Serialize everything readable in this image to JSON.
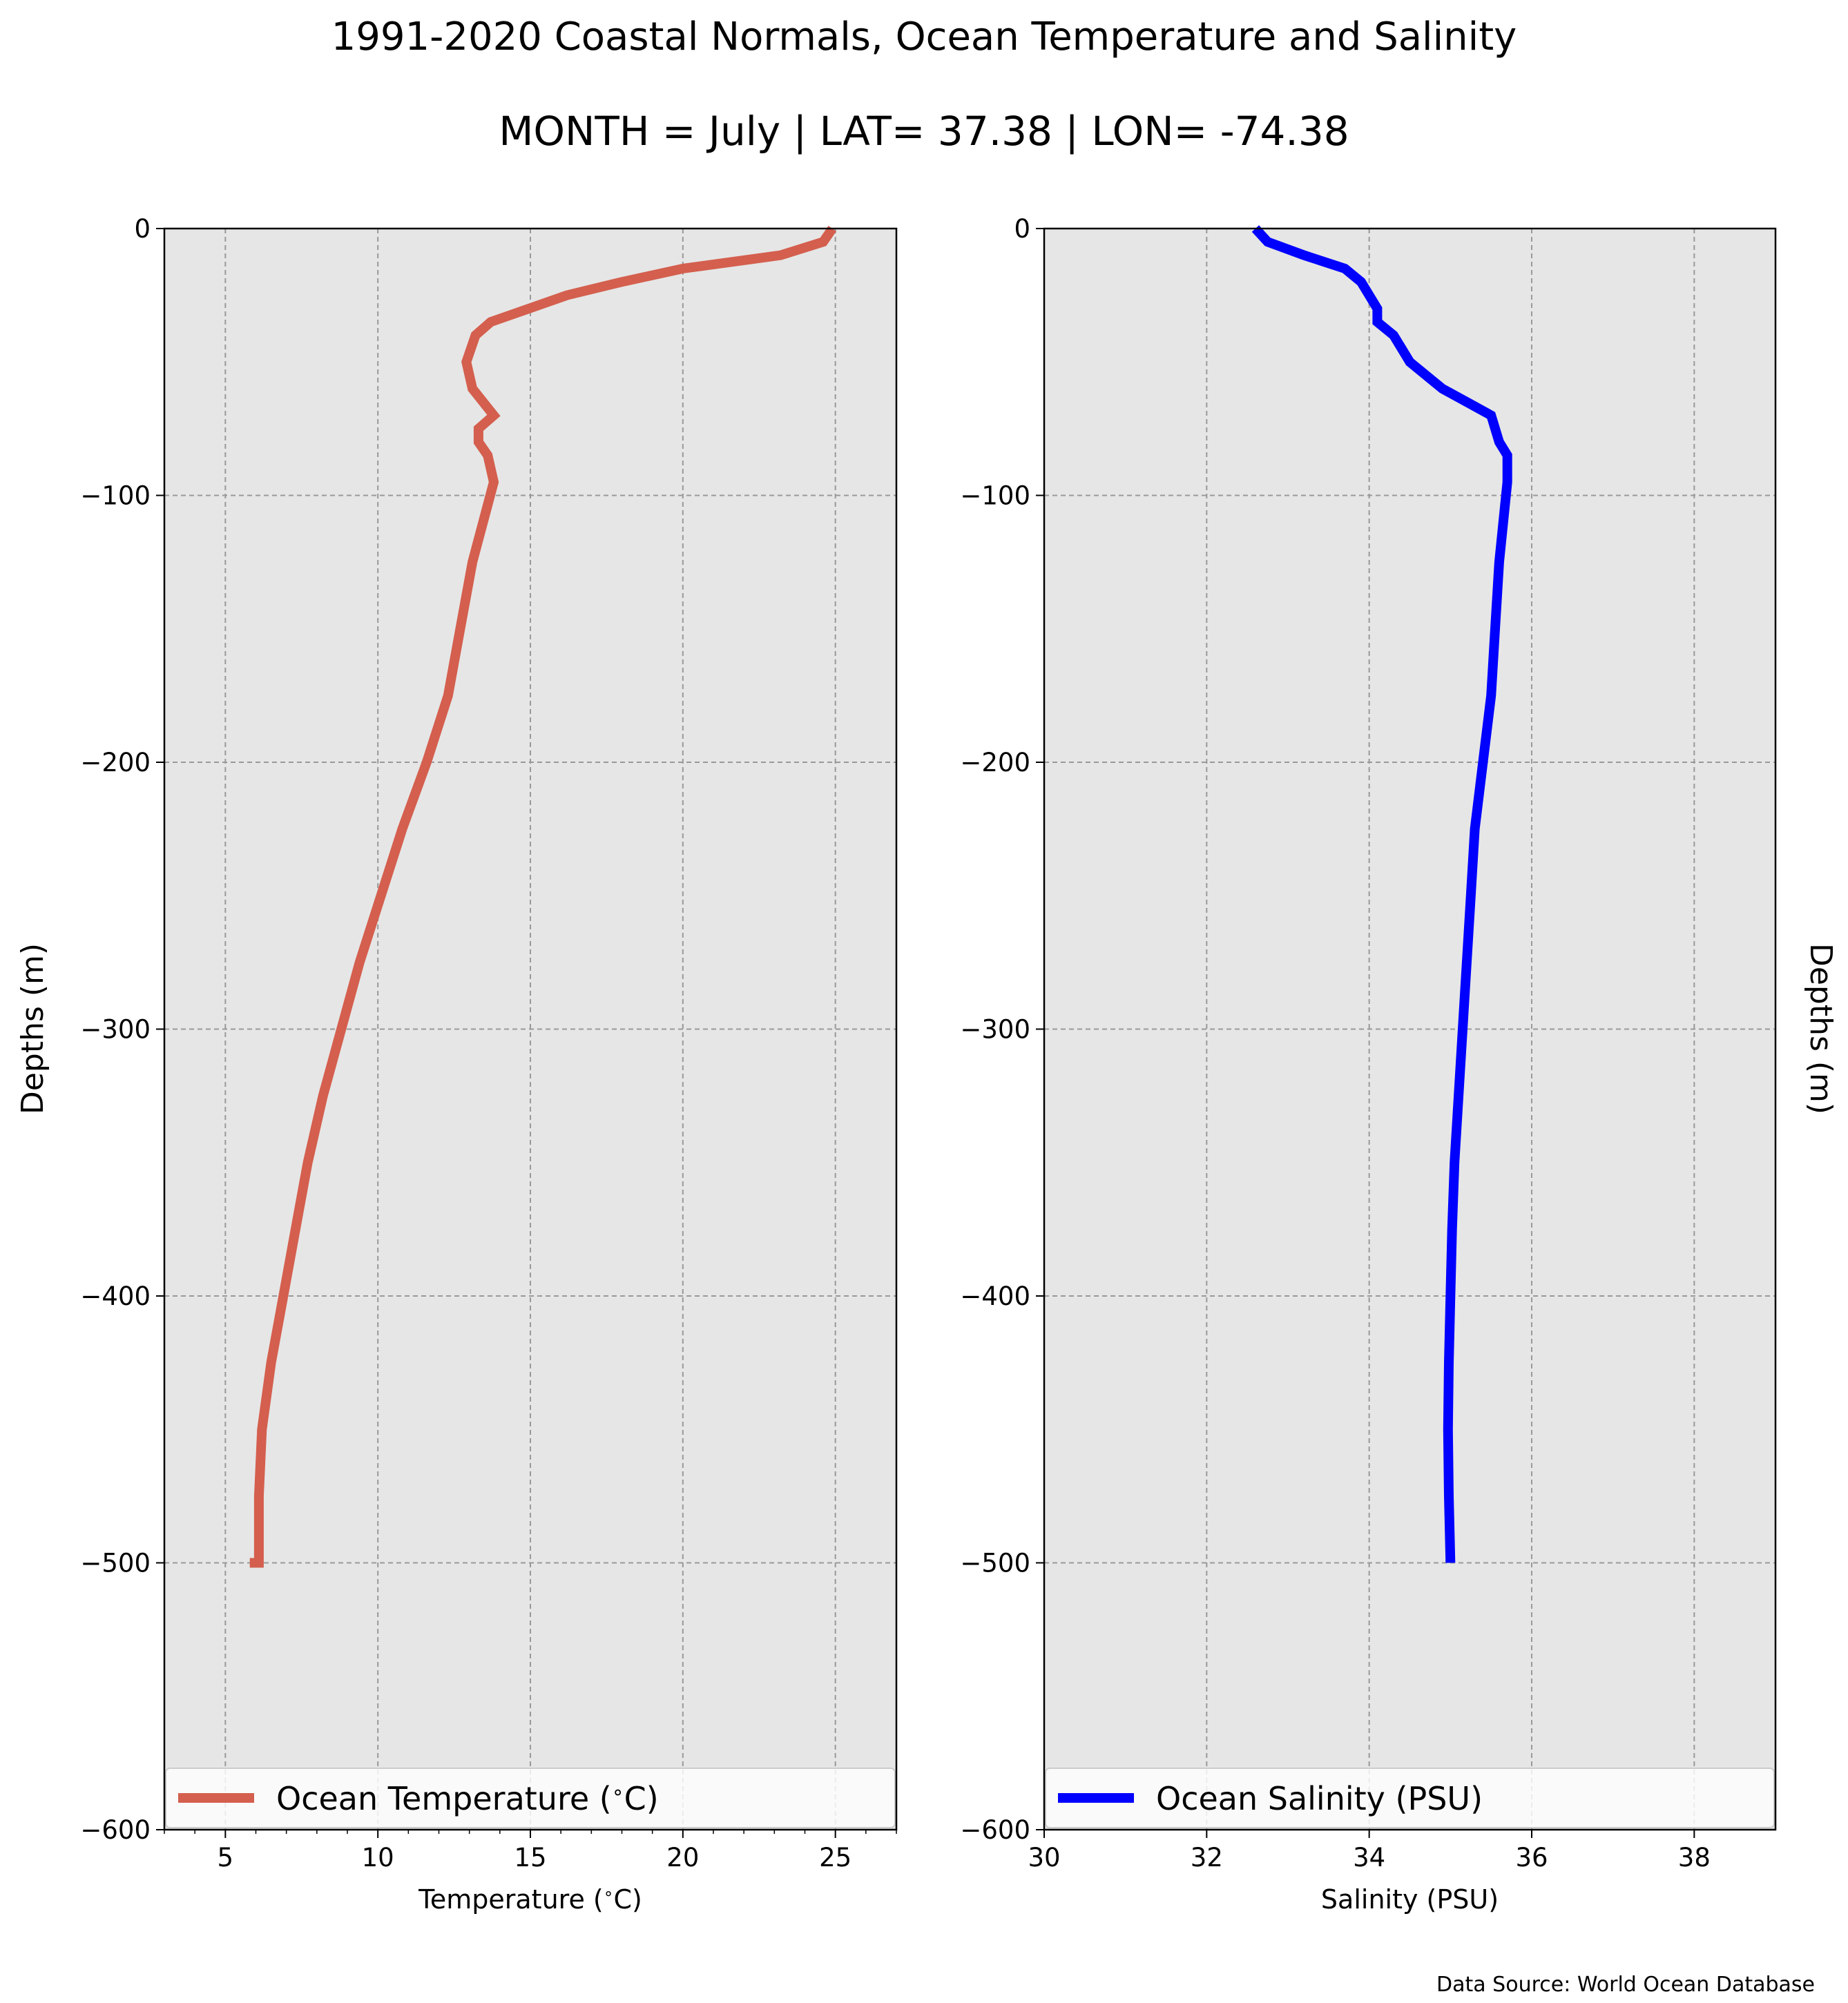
{
  "figure": {
    "title": "1991-2020 Coastal Normals, Ocean Temperature and Salinity",
    "subtitle": "MONTH = July | LAT= 37.38 | LON= -74.38",
    "source": "Data Source: World Ocean Database"
  },
  "colors": {
    "temperature": "#d45f4e",
    "salinity": "#0000ff",
    "plot_bg": "#e6e6e6",
    "grid": "#999999"
  },
  "chart_data": [
    {
      "type": "line",
      "xlabel": "Temperature ($^\\circ$C)",
      "ylabel": "Depths (m)",
      "xlim": [
        3,
        27
      ],
      "ylim": [
        -600,
        0
      ],
      "xticks": [
        5,
        10,
        15,
        20,
        25
      ],
      "xtick_labels": [
        "5",
        "10",
        "15",
        "20",
        "25"
      ],
      "yticks": [
        0,
        -100,
        -200,
        -300,
        -400,
        -500,
        -600
      ],
      "ytick_labels": [
        "0",
        "−100",
        "−200",
        "−300",
        "−400",
        "−500",
        "−600"
      ],
      "grid": true,
      "legend_position": "lower center",
      "series": [
        {
          "name": "Ocean Temperature ($^\\circ$C)",
          "x": [
            24.9,
            24.6,
            23.2,
            20.0,
            18.0,
            16.2,
            13.7,
            13.2,
            12.9,
            13.1,
            13.8,
            13.3,
            13.3,
            13.6,
            13.8,
            13.1,
            12.7,
            12.3,
            11.6,
            10.8,
            10.1,
            9.4,
            8.8,
            8.2,
            7.7,
            7.3,
            6.9,
            6.5,
            6.2,
            6.1,
            6.1,
            5.8
          ],
          "y": [
            0,
            -5,
            -10,
            -15,
            -20,
            -25,
            -35,
            -40,
            -50,
            -60,
            -70,
            -75,
            -80,
            -85,
            -95,
            -125,
            -150,
            -175,
            -200,
            -225,
            -250,
            -275,
            -300,
            -325,
            -350,
            -375,
            -400,
            -425,
            -450,
            -475,
            -500,
            -500
          ]
        }
      ]
    },
    {
      "type": "line",
      "xlabel": "Salinity (PSU)",
      "ylabel": "Depths (m)",
      "xlim": [
        30,
        39
      ],
      "ylim": [
        -600,
        0
      ],
      "xticks": [
        30,
        32,
        34,
        36,
        38
      ],
      "xtick_labels": [
        "30",
        "32",
        "34",
        "36",
        "38"
      ],
      "yticks": [
        0,
        -100,
        -200,
        -300,
        -400,
        -500,
        -600
      ],
      "ytick_labels": [
        "0",
        "−100",
        "−200",
        "−300",
        "−400",
        "−500",
        "−600"
      ],
      "grid": true,
      "legend_position": "lower center",
      "series": [
        {
          "name": "Ocean Salinity (PSU)",
          "x": [
            32.6,
            32.75,
            33.2,
            33.7,
            33.9,
            34.1,
            34.1,
            34.3,
            34.5,
            34.9,
            35.2,
            35.5,
            35.6,
            35.7,
            35.7,
            35.6,
            35.55,
            35.5,
            35.4,
            35.3,
            35.25,
            35.2,
            35.15,
            35.1,
            35.05,
            35.02,
            35.0,
            34.98,
            34.97,
            34.98,
            35.0,
            35.0
          ],
          "y": [
            0,
            -5,
            -10,
            -15,
            -20,
            -30,
            -35,
            -40,
            -50,
            -60,
            -65,
            -70,
            -80,
            -85,
            -95,
            -125,
            -150,
            -175,
            -200,
            -225,
            -250,
            -275,
            -300,
            -325,
            -350,
            -375,
            -400,
            -425,
            -450,
            -475,
            -500,
            -500
          ]
        }
      ]
    }
  ]
}
